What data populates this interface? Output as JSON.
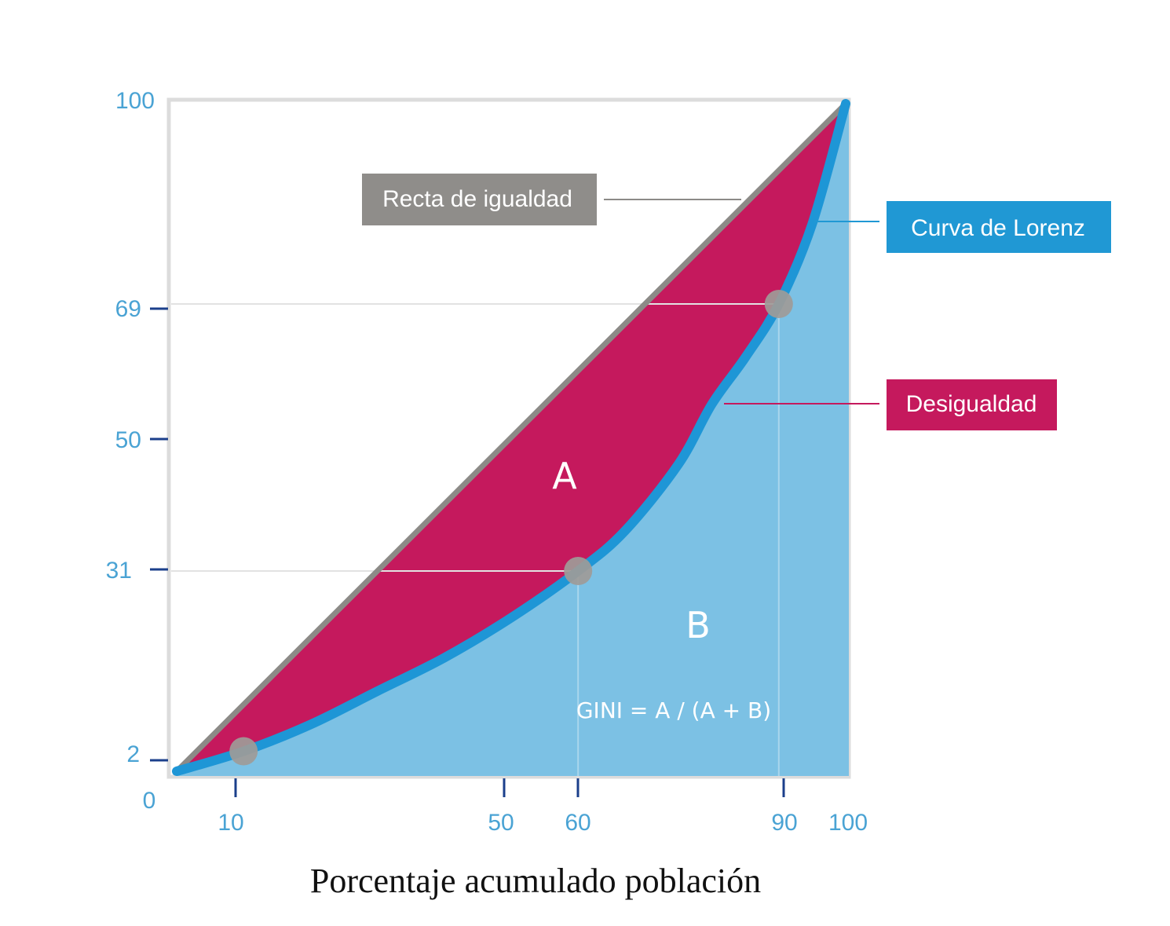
{
  "chart_data": {
    "type": "area",
    "xlabel": "Porcentaje acumulado población",
    "ylabel": "",
    "xlim": [
      0,
      100
    ],
    "ylim": [
      0,
      100
    ],
    "x_ticks": [
      "10",
      "50",
      "60",
      "90",
      "100"
    ],
    "y_ticks": [
      "100",
      "69",
      "50",
      "31",
      "2"
    ],
    "origin_label": "0",
    "equality_line": {
      "name": "Recta de igualdad",
      "x": [
        0,
        100
      ],
      "y": [
        0,
        100
      ]
    },
    "lorenz_curve": {
      "name": "Curva de Lorenz",
      "x": [
        0,
        10,
        20,
        30,
        40,
        50,
        60,
        67,
        75,
        80,
        85,
        90,
        95,
        100
      ],
      "y": [
        0,
        3,
        7,
        12,
        17,
        23,
        30,
        36,
        46,
        55,
        62,
        70,
        82,
        100
      ]
    },
    "markers": [
      {
        "x": 10,
        "y": 3
      },
      {
        "x": 60,
        "y": 30
      },
      {
        "x": 90,
        "y": 70
      }
    ],
    "guide_lines": [
      {
        "x": 60,
        "y": 30
      },
      {
        "x": 90,
        "y": 70
      }
    ],
    "area_labels": {
      "a": "A",
      "b": "B"
    },
    "formula": "GINI = A / (A + B)",
    "callouts": {
      "equality": "Recta de igualdad",
      "lorenz": "Curva de Lorenz",
      "inequality": "Desigualdad"
    }
  },
  "colors": {
    "inequality_fill": "#c5195d",
    "lower_fill": "#7cc1e4",
    "lorenz_line": "#1e96d6",
    "equality_line": "#8c8a87",
    "frame": "#dcdcdc",
    "tick": "#1b3f8b",
    "tick_label": "#4aa3d4",
    "marker": "#9e9b98",
    "callout_equality_bg": "#8f8d8a",
    "callout_lorenz_bg": "#2098d4",
    "callout_inequality_bg": "#c5195d"
  }
}
